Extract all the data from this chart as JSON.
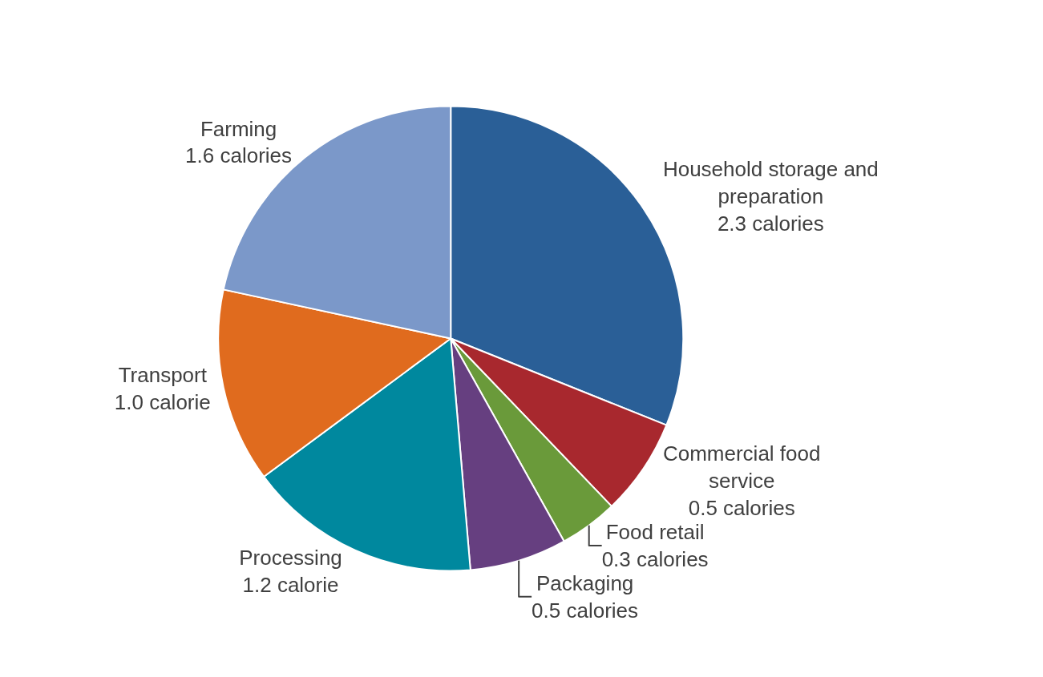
{
  "chart_data": {
    "type": "pie",
    "categories": [
      "Household storage and preparation",
      "Commercial food service",
      "Food retail",
      "Packaging",
      "Processing",
      "Transport",
      "Farming"
    ],
    "values": [
      2.3,
      0.5,
      0.3,
      0.5,
      1.2,
      1.0,
      1.6
    ],
    "value_labels": [
      "2.3 calories",
      "0.5 calories",
      "0.3 calories",
      "0.5 calories",
      "1.2 calorie",
      "1.0 calorie",
      "1.6 calories"
    ],
    "colors": [
      "#2a5f97",
      "#a8282e",
      "#6a9a3a",
      "#663f80",
      "#00889e",
      "#e06b1e",
      "#7b98c9"
    ],
    "legend": false
  }
}
